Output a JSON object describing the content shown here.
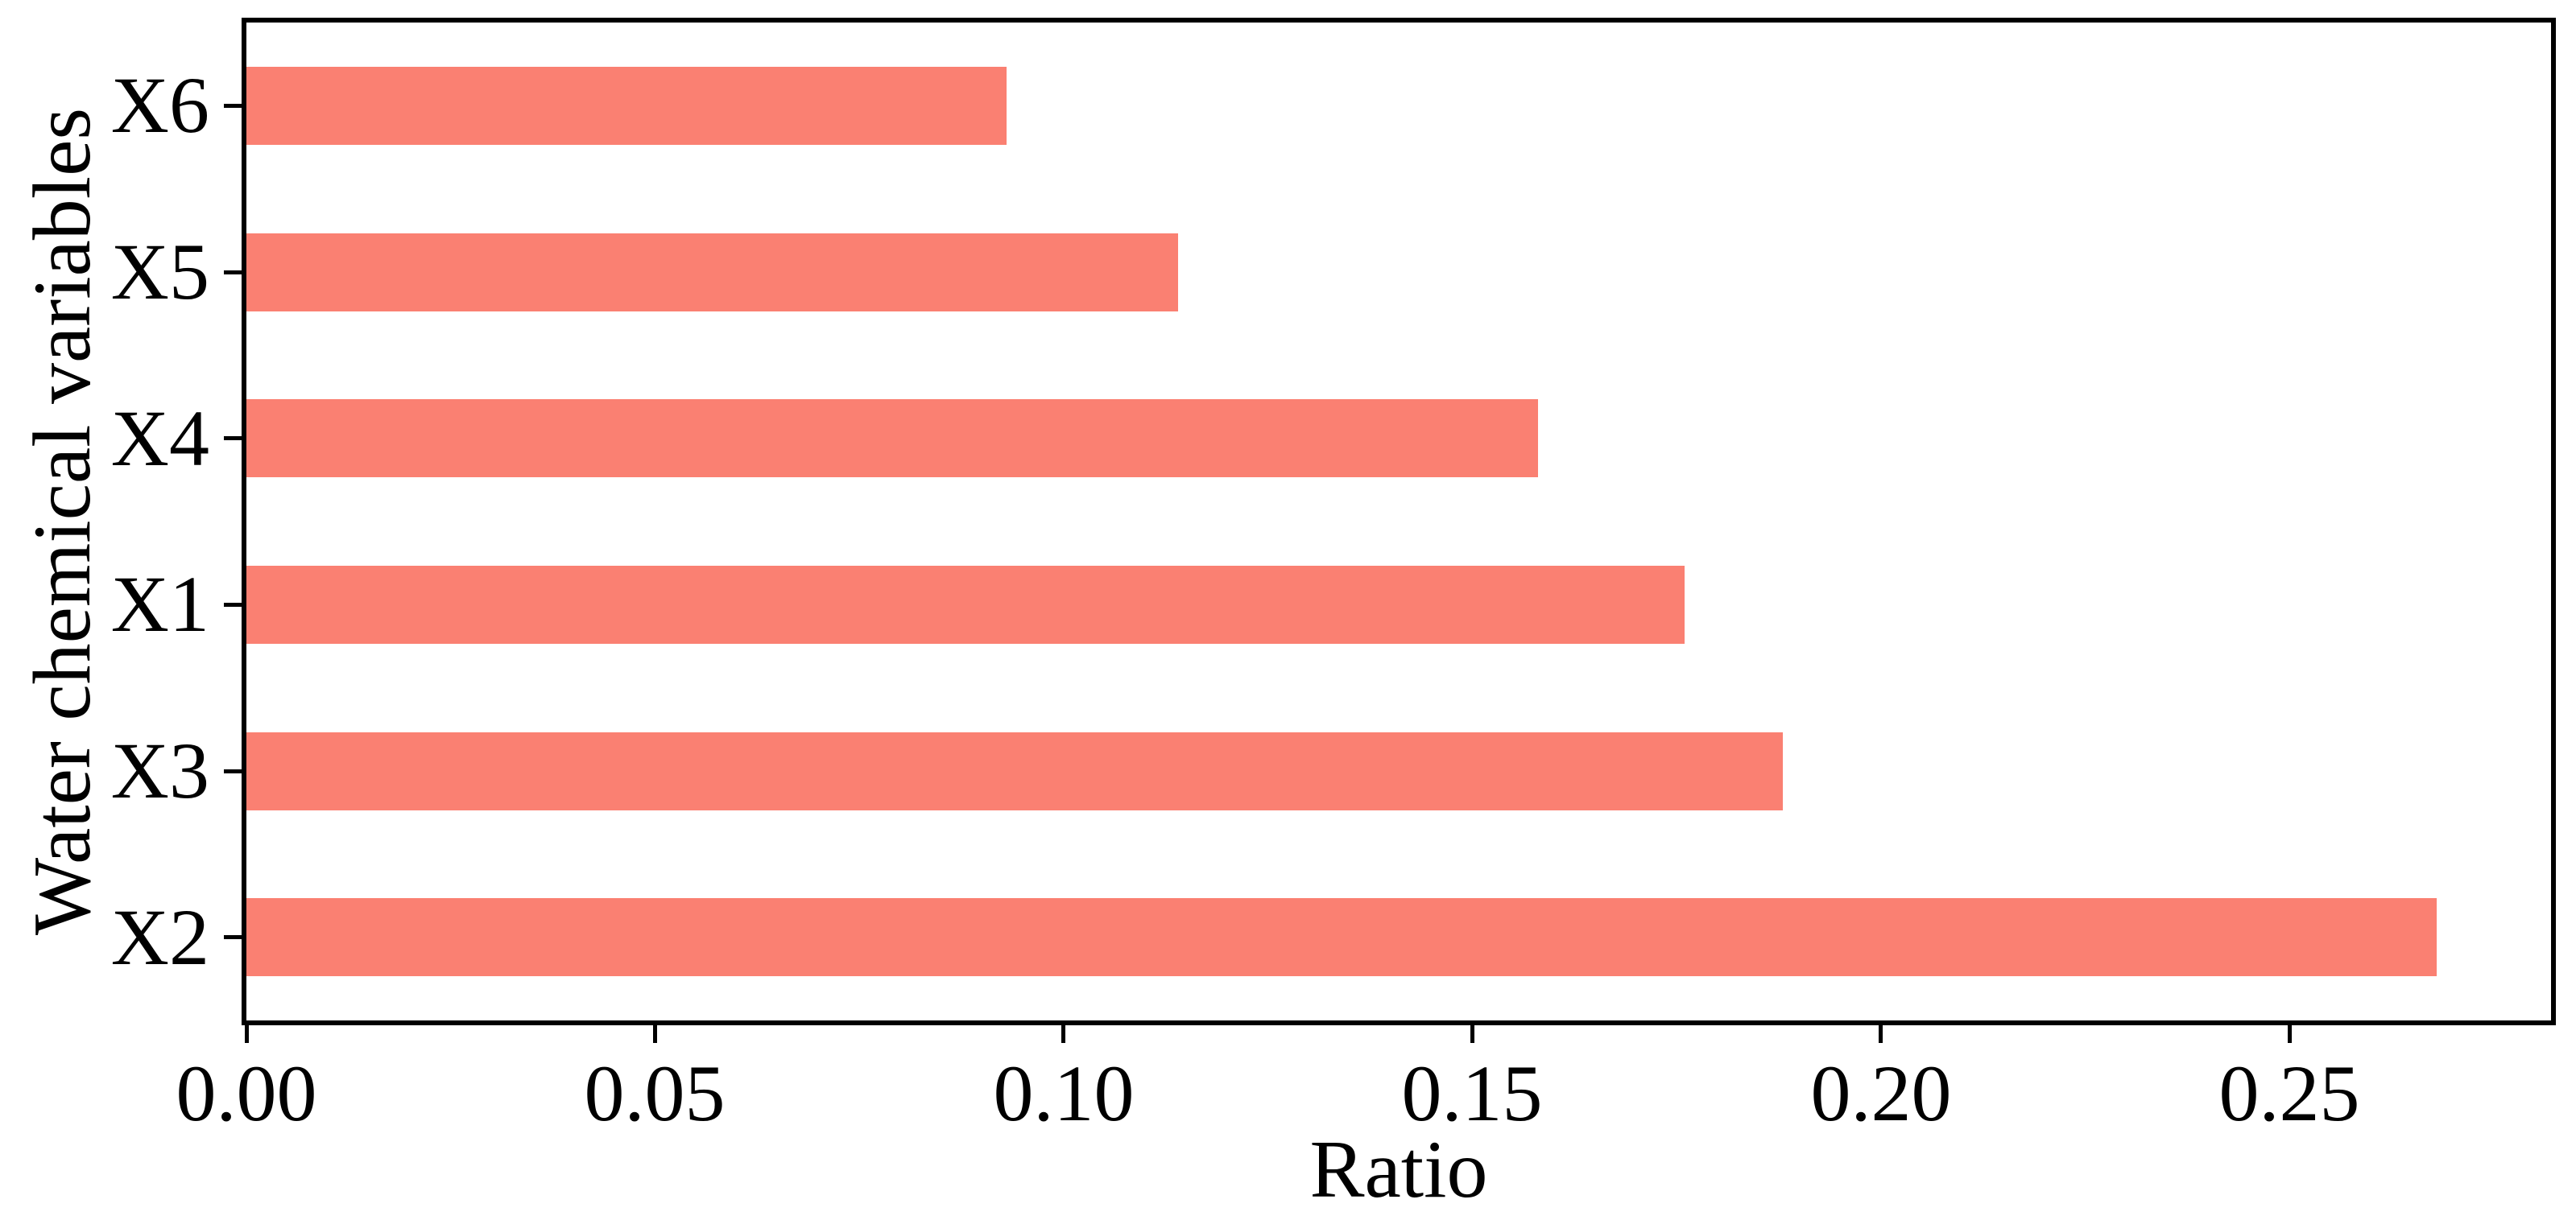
{
  "figure": {
    "background_color": "#ffffff",
    "text_color": "#000000",
    "spine_color": "#000000"
  },
  "chart_data": {
    "type": "bar",
    "orientation": "horizontal",
    "title": "",
    "xlabel": "Ratio",
    "ylabel": "Water chemical variables",
    "categories": [
      "X6",
      "X5",
      "X4",
      "X1",
      "X3",
      "X2"
    ],
    "values": [
      0.093,
      0.114,
      0.158,
      0.176,
      0.188,
      0.268
    ],
    "xlim": [
      0,
      0.282
    ],
    "xticks": [
      0.0,
      0.05,
      0.1,
      0.15,
      0.2,
      0.25
    ],
    "xtick_labels": [
      "0.00",
      "0.05",
      "0.10",
      "0.15",
      "0.20",
      "0.25"
    ],
    "bar_color": "#FA8072",
    "bar_height_fraction": 0.47,
    "grid": false,
    "legend": null
  }
}
